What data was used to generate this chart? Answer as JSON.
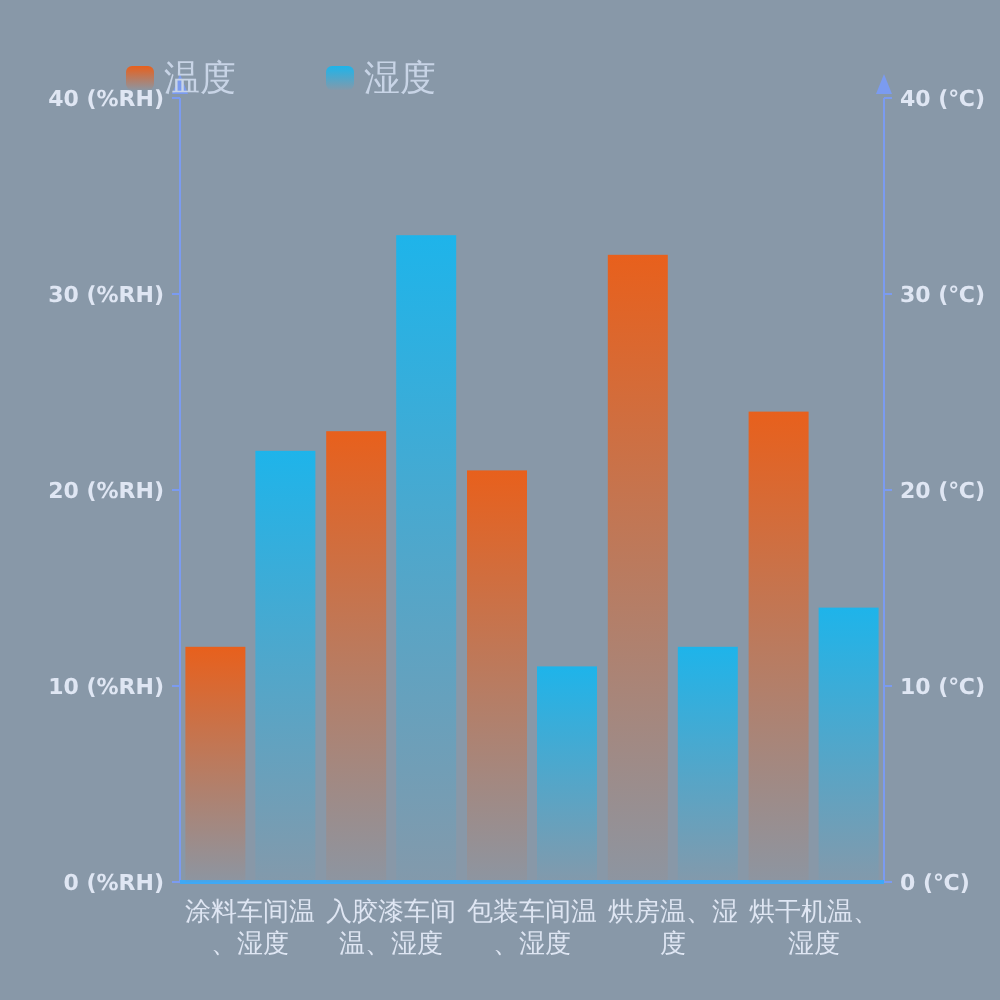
{
  "chart_data": {
    "type": "bar",
    "categories": [
      "涂料车间温、湿度",
      "入胶漆车间温、湿度",
      "包装车间温、湿度",
      "烘房温、湿度",
      "烘干机温、湿度"
    ],
    "series": [
      {
        "name": "温度",
        "color": "#e8601c",
        "values": [
          12,
          23,
          21,
          32,
          24
        ]
      },
      {
        "name": "湿度",
        "color": "#1eb4ea",
        "values": [
          22,
          33,
          11,
          12,
          14
        ]
      }
    ],
    "ylim": [
      0,
      40
    ],
    "yticks": [
      {
        "value": 0,
        "label": "0 (%RH)"
      },
      {
        "value": 10,
        "label": "10 (%RH)"
      },
      {
        "value": 20,
        "label": "20 (%RH)"
      },
      {
        "value": 30,
        "label": "30 (%RH)"
      },
      {
        "value": 40,
        "label": "40 (%RH)"
      }
    ],
    "y2lim": [
      0,
      40
    ],
    "y2ticks": [
      {
        "value": 0,
        "label": "0 (℃)"
      },
      {
        "value": 10,
        "label": "10 (℃)"
      },
      {
        "value": 20,
        "label": "20 (℃)"
      },
      {
        "value": 30,
        "label": "30 (℃)"
      },
      {
        "value": 40,
        "label": "40 (℃)"
      }
    ],
    "legend": "top left",
    "grid": false
  }
}
